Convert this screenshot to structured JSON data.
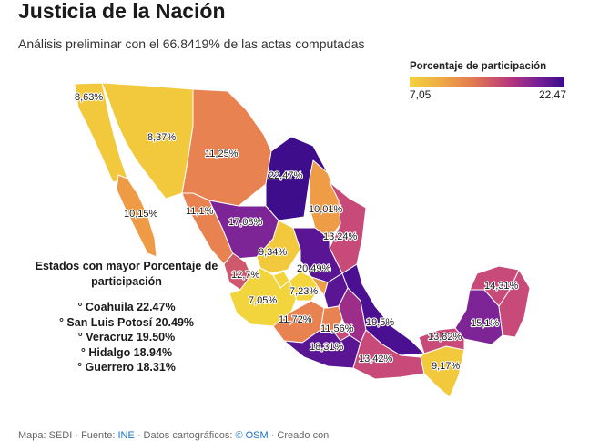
{
  "header": {
    "title": "Justicia de la Nación",
    "subtitle": "Análisis preliminar con el 66.8419% de las actas computadas"
  },
  "legend": {
    "title": "Porcentaje de participación",
    "min_label": "7,05",
    "max_label": "22,47",
    "colors": [
      "#f2d43c",
      "#eea646",
      "#e07752",
      "#b9397a",
      "#7a2196",
      "#3c0b8c"
    ]
  },
  "map_labels": {
    "bc": "8,63%",
    "son": "8,37%",
    "chih": "11,25%",
    "coah": "22,47%",
    "bcs": "10,15%",
    "sin": "11,1%",
    "dgo": "17,08%",
    "nl": "10,01%",
    "tamps": "13,24%",
    "zac": "9,34%",
    "slp": "20,49%",
    "nay": "12,7%",
    "ags": "7,23%",
    "jal": "7,05%",
    "mich": "11,72%",
    "mex": "11,56%",
    "ver": "19,5%",
    "gro": "18,31%",
    "oax": "13,42%",
    "chis": "9,17%",
    "tab": "13,82%",
    "camp": "15,1%",
    "qroo": "14,31%"
  },
  "annotation": {
    "title": "Estados con mayor Porcentaje de participación",
    "items": [
      "° Coahuila 22.47%",
      "° San Luis Potosí 20.49%",
      "° Veracruz 19.50%",
      "° Hidalgo 18.94%",
      "° Guerrero 18.31%"
    ]
  },
  "source": {
    "prefix": "Mapa: SEDI · Fuente: ",
    "ine": "INE",
    "middle": " · Datos cartográficos: ",
    "osm": "© OSM",
    "suffix": " · Creado con "
  }
}
